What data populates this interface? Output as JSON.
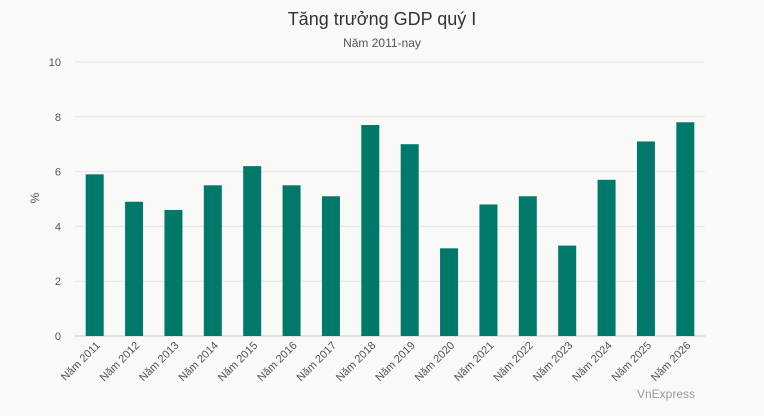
{
  "chart_data": {
    "type": "bar",
    "title": "Tăng trưởng GDP quý I",
    "subtitle": "Năm 2011-nay",
    "xlabel": "",
    "ylabel": "%",
    "ylim": [
      0,
      10
    ],
    "yticks": [
      0,
      2,
      4,
      6,
      8,
      10
    ],
    "grid": true,
    "bar_color": "#00796b",
    "categories": [
      "Năm 2011",
      "Năm 2012",
      "Năm 2013",
      "Năm 2014",
      "Năm 2015",
      "Năm 2016",
      "Năm 2017",
      "Năm 2018",
      "Năm 2019",
      "Năm 2020",
      "Năm 2021",
      "Năm 2022",
      "Năm 2023",
      "Năm 2024",
      "Năm 2025",
      "Năm 2026"
    ],
    "values": [
      5.9,
      4.9,
      4.6,
      5.5,
      6.2,
      5.5,
      5.1,
      7.7,
      7.0,
      3.2,
      4.8,
      5.1,
      3.3,
      5.7,
      7.1,
      7.8
    ],
    "credit": "VnExpress"
  }
}
